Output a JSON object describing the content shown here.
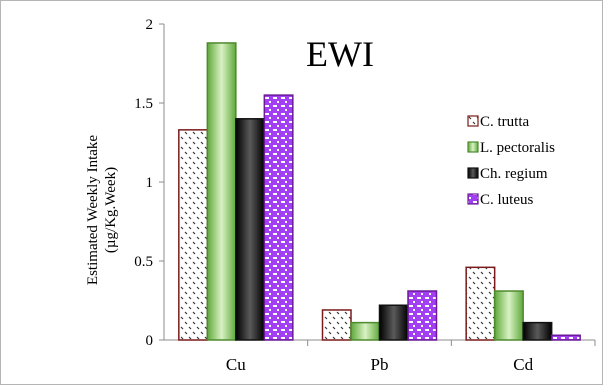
{
  "chart_data": {
    "type": "bar",
    "title": "EWI",
    "ylabel_line1": "Estimated Weekly Intake",
    "ylabel_line2": "(µg/Kg.Week)",
    "xlabel": "",
    "categories": [
      "Cu",
      "Pb",
      "Cd"
    ],
    "ylim": [
      0,
      2
    ],
    "yticks": [
      "0",
      "0.5",
      "1",
      "1.5",
      "2"
    ],
    "ytick_values": [
      0,
      0.5,
      1,
      1.5,
      2
    ],
    "grid": false,
    "legend_position": "right",
    "series": [
      {
        "name": "C. trutta",
        "values": [
          1.33,
          0.19,
          0.46
        ],
        "fill": "dots",
        "stroke": "#7a1a1a"
      },
      {
        "name": "L. pectoralis",
        "values": [
          1.88,
          0.11,
          0.31
        ],
        "fill": "green-gradient",
        "stroke": "#4e8a2e"
      },
      {
        "name": "Ch. regium",
        "values": [
          1.4,
          0.22,
          0.11
        ],
        "fill": "black-gradient",
        "stroke": "#111111"
      },
      {
        "name": "C. luteus",
        "values": [
          1.55,
          0.31,
          0.03
        ],
        "fill": "purple-pattern",
        "stroke": "#6a1a9a"
      }
    ]
  }
}
